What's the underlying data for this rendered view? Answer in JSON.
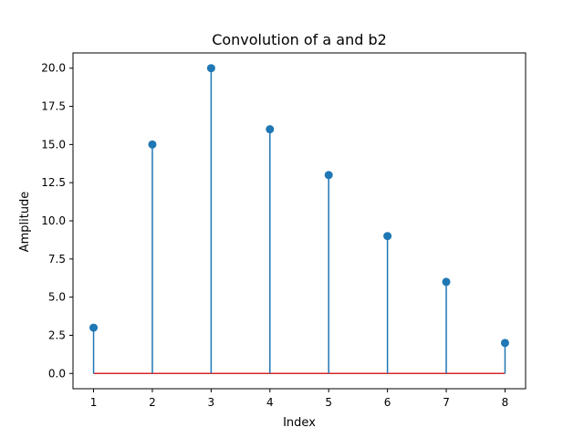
{
  "chart_data": {
    "type": "stem",
    "title": "Convolution of a and b2",
    "xlabel": "Index",
    "ylabel": "Amplitude",
    "x": [
      1,
      2,
      3,
      4,
      5,
      6,
      7,
      8
    ],
    "values": [
      3,
      15,
      20,
      16,
      13,
      9,
      6,
      2
    ],
    "xlim": [
      0.65,
      8.35
    ],
    "ylim": [
      -1.0,
      21.0
    ],
    "xticks": [
      "1",
      "2",
      "3",
      "4",
      "5",
      "6",
      "7",
      "8"
    ],
    "yticks": [
      "0.0",
      "2.5",
      "5.0",
      "7.5",
      "10.0",
      "12.5",
      "15.0",
      "17.5",
      "20.0"
    ],
    "ytick_values": [
      0,
      2.5,
      5,
      7.5,
      10,
      12.5,
      15,
      17.5,
      20
    ],
    "baseline": 0,
    "grid": false,
    "colors": {
      "stem": "#1f77b4",
      "marker": "#1f77b4",
      "baseline": "#d62728",
      "axes": "#000000"
    }
  }
}
